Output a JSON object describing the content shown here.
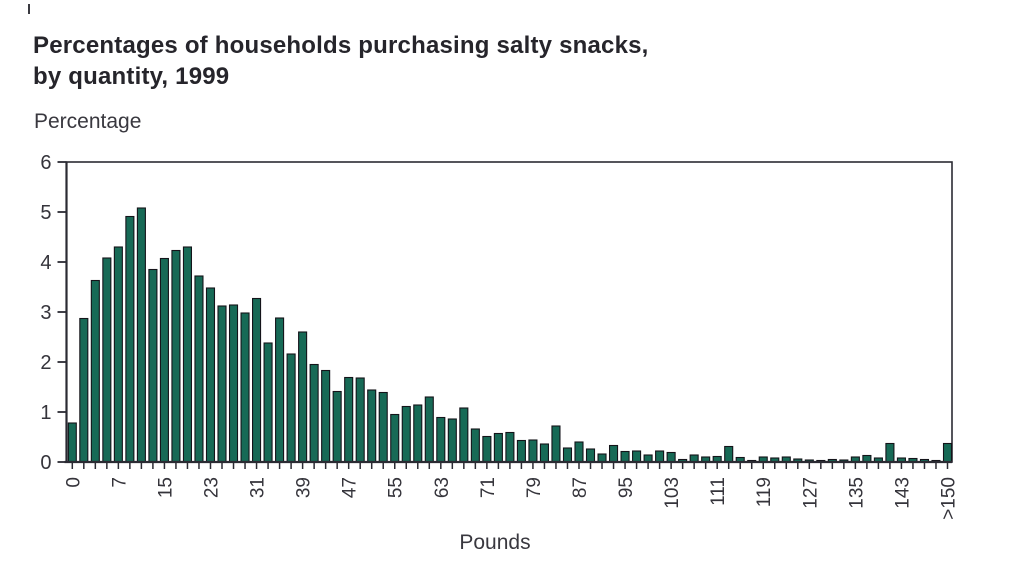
{
  "header": {
    "title_line1": "Percentages of households purchasing salty snacks,",
    "title_line2": "by quantity, 1999"
  },
  "chart_data": {
    "type": "bar",
    "title": "Percentages of households purchasing salty snacks, by quantity, 1999",
    "ylabel": "Percentage",
    "xlabel": "Pounds",
    "ylim": [
      0,
      6
    ],
    "y_ticks": [
      0,
      1,
      2,
      3,
      4,
      5,
      6
    ],
    "x_tick_labels": [
      "0",
      "7",
      "15",
      "23",
      "31",
      "39",
      "47",
      "55",
      "63",
      "71",
      "79",
      "87",
      "95",
      "103",
      "111",
      "119",
      "127",
      "135",
      "143",
      ">150"
    ],
    "x_label_every_n_bars": 4,
    "grid": false,
    "legend": "none",
    "values": [
      0.78,
      2.87,
      3.63,
      4.08,
      4.3,
      4.91,
      5.08,
      3.85,
      4.07,
      4.23,
      4.3,
      3.72,
      3.48,
      3.12,
      3.14,
      2.98,
      3.27,
      2.38,
      2.88,
      2.16,
      2.6,
      1.95,
      1.83,
      1.41,
      1.69,
      1.68,
      1.44,
      1.39,
      0.95,
      1.11,
      1.14,
      1.3,
      0.89,
      0.86,
      1.08,
      0.66,
      0.51,
      0.57,
      0.59,
      0.43,
      0.44,
      0.36,
      0.72,
      0.28,
      0.4,
      0.26,
      0.16,
      0.33,
      0.21,
      0.22,
      0.14,
      0.22,
      0.19,
      0.05,
      0.14,
      0.1,
      0.11,
      0.31,
      0.09,
      0.03,
      0.1,
      0.08,
      0.1,
      0.06,
      0.04,
      0.03,
      0.05,
      0.04,
      0.1,
      0.13,
      0.08,
      0.37,
      0.08,
      0.07,
      0.05,
      0.03,
      0.37
    ],
    "bar_color": "#176a56",
    "bar_outline": "#14141a",
    "axis_color": "#2b2b33",
    "text_color": "#35343b"
  }
}
